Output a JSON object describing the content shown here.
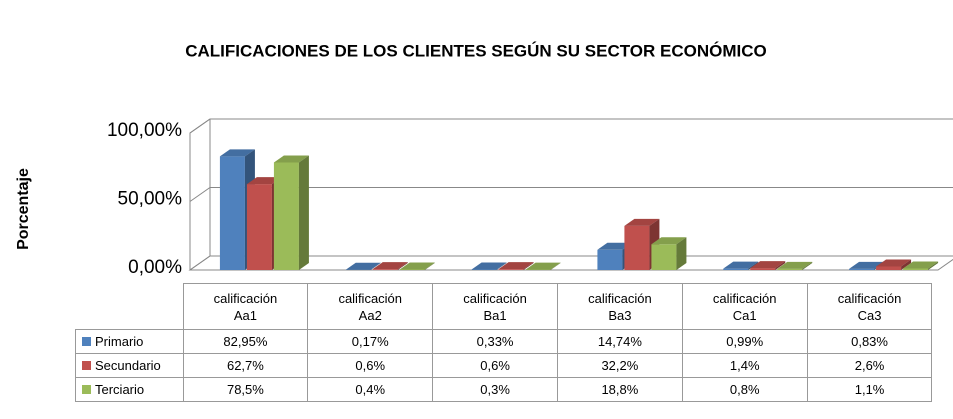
{
  "chart_data": {
    "type": "bar3d",
    "title": "CALIFICACIONES DE LOS CLIENTES SEGÚN SU SECTOR ECONÓMICO",
    "y_label": "Porcentaje",
    "categories": [
      "calificación Aa1",
      "calificación Aa2",
      "calificación Ba1",
      "calificación Ba3",
      "calificación Ca1",
      "calificación Ca3"
    ],
    "series": [
      {
        "name": "Primario",
        "color": "#4f81bd",
        "values": [
          82.95,
          0.17,
          0.33,
          14.74,
          0.99,
          0.83
        ],
        "value_labels": [
          "82,95%",
          "0,17%",
          "0,33%",
          "14,74%",
          "0,99%",
          "0,83%"
        ]
      },
      {
        "name": "Secundario",
        "color": "#c0504d",
        "values": [
          62.7,
          0.6,
          0.6,
          32.2,
          1.4,
          2.6
        ],
        "value_labels": [
          "62,7%",
          "0,6%",
          "0,6%",
          "32,2%",
          "1,4%",
          "2,6%"
        ]
      },
      {
        "name": "Terciario",
        "color": "#9bbb59",
        "values": [
          78.5,
          0.4,
          0.3,
          18.8,
          0.8,
          1.1
        ],
        "value_labels": [
          "78,5%",
          "0,4%",
          "0,3%",
          "18,8%",
          "0,8%",
          "1,1%"
        ]
      }
    ],
    "ylim": [
      0,
      100
    ],
    "yticks": [
      {
        "value": 0,
        "label": "0,00%"
      },
      {
        "value": 50,
        "label": "50,00%"
      },
      {
        "value": 100,
        "label": "100,00%"
      }
    ],
    "grid": true
  }
}
